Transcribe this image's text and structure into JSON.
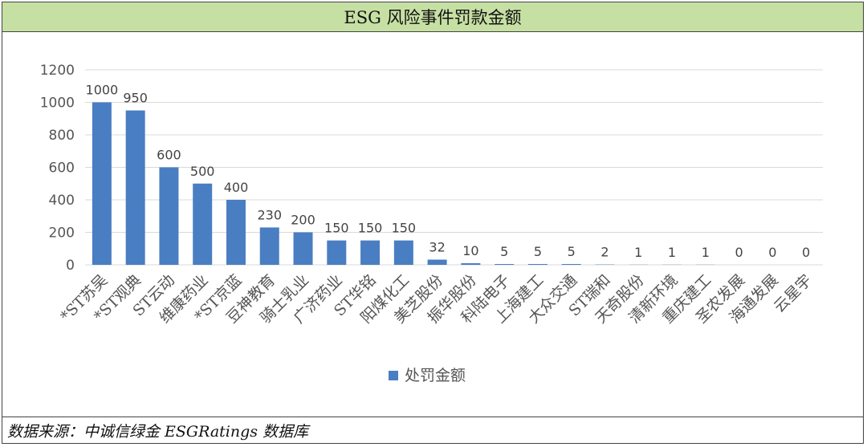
{
  "title": "ESG 风险事件罚款金额",
  "source": "数据来源：中诚信绿金 ESGRatings 数据库",
  "colors": {
    "bar": "#4a7ec2",
    "header_bg": "#c6e0a4",
    "grid": "#d9d9d9"
  },
  "chart_data": {
    "type": "bar",
    "title": "ESG 风险事件罚款金额",
    "xlabel": "",
    "ylabel": "",
    "ylim": [
      0,
      1200
    ],
    "yticks": [
      0,
      200,
      400,
      600,
      800,
      1000,
      1200
    ],
    "grid": true,
    "legend_position": "bottom",
    "categories": [
      "*ST苏吴",
      "*ST观典",
      "ST云动",
      "维康药业",
      "*ST京蓝",
      "豆神教育",
      "骑士乳业",
      "广济药业",
      "ST华铭",
      "阳煤化工",
      "美芝股份",
      "振华股份",
      "科陆电子",
      "上海建工",
      "大众交通",
      "ST瑞和",
      "天奇股份",
      "清新环境",
      "重庆建工",
      "圣农发展",
      "海通发展",
      "云星宇"
    ],
    "series": [
      {
        "name": "处罚金额",
        "values": [
          1000,
          950,
          600,
          500,
          400,
          230,
          200,
          150,
          150,
          150,
          32,
          10,
          5,
          5,
          5,
          2,
          1,
          1,
          1,
          0,
          0,
          0
        ]
      }
    ]
  }
}
